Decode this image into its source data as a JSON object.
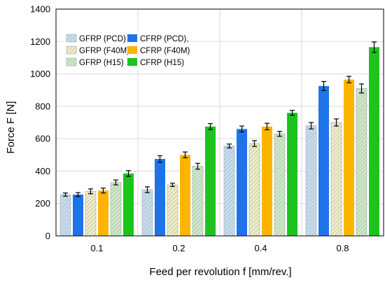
{
  "chart_data": {
    "type": "bar",
    "xlabel": "Feed per revolution f [mm/rev.]",
    "ylabel": "Force F [N]",
    "ylim": [
      0,
      1400
    ],
    "yticks": [
      0,
      200,
      400,
      600,
      800,
      1000,
      1200,
      1400
    ],
    "categories": [
      "0.1",
      "0.2",
      "0.4",
      "0.8"
    ],
    "grid": true,
    "legend_placement": "top-left",
    "series": [
      {
        "name": "GFRP (PCD)",
        "color": "#c9dcec",
        "pattern": "hatched",
        "values": [
          255,
          285,
          555,
          680
        ],
        "errors": [
          10,
          18,
          12,
          20
        ]
      },
      {
        "name": "CFRP (PCD),",
        "color": "#1f73e8",
        "pattern": "solid",
        "values": [
          255,
          475,
          660,
          925
        ],
        "errors": [
          12,
          20,
          18,
          28
        ]
      },
      {
        "name": "GFRP (F40M)",
        "color": "#f0ecc4",
        "pattern": "hatched",
        "values": [
          275,
          315,
          570,
          700
        ],
        "errors": [
          15,
          10,
          18,
          22
        ]
      },
      {
        "name": "CFRP (F40M)",
        "color": "#fbb400",
        "pattern": "solid",
        "values": [
          280,
          500,
          675,
          965
        ],
        "errors": [
          15,
          18,
          20,
          20
        ]
      },
      {
        "name": "GFRP (H15)",
        "color": "#cfe8c4",
        "pattern": "hatched",
        "values": [
          330,
          430,
          630,
          910
        ],
        "errors": [
          15,
          18,
          15,
          28
        ]
      },
      {
        "name": "CFRP (H15)",
        "color": "#1dc41d",
        "pattern": "solid",
        "values": [
          385,
          675,
          760,
          1165
        ],
        "errors": [
          18,
          18,
          15,
          32
        ]
      }
    ]
  }
}
